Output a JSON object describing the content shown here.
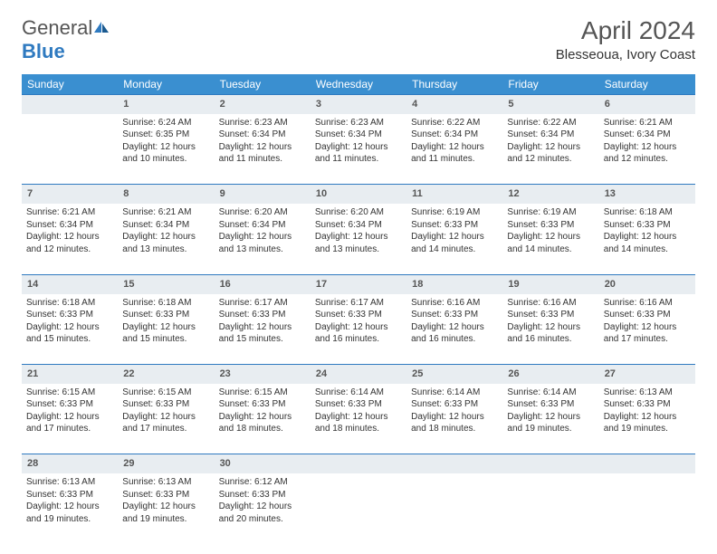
{
  "brand": {
    "part1": "General",
    "part2": "Blue"
  },
  "title": "April 2024",
  "location": "Blesseoua, Ivory Coast",
  "colors": {
    "header_bg": "#3a8fd0",
    "header_text": "#ffffff",
    "daynum_bg": "#e8edf1",
    "row_border": "#2f7ac0",
    "brand_blue": "#2f7ac0",
    "text": "#333333",
    "title_text": "#555555",
    "background": "#ffffff"
  },
  "day_headers": [
    "Sunday",
    "Monday",
    "Tuesday",
    "Wednesday",
    "Thursday",
    "Friday",
    "Saturday"
  ],
  "weeks": [
    {
      "nums": [
        "",
        "1",
        "2",
        "3",
        "4",
        "5",
        "6"
      ],
      "cells": [
        null,
        {
          "sunrise": "6:24 AM",
          "sunset": "6:35 PM",
          "daylight": "12 hours and 10 minutes."
        },
        {
          "sunrise": "6:23 AM",
          "sunset": "6:34 PM",
          "daylight": "12 hours and 11 minutes."
        },
        {
          "sunrise": "6:23 AM",
          "sunset": "6:34 PM",
          "daylight": "12 hours and 11 minutes."
        },
        {
          "sunrise": "6:22 AM",
          "sunset": "6:34 PM",
          "daylight": "12 hours and 11 minutes."
        },
        {
          "sunrise": "6:22 AM",
          "sunset": "6:34 PM",
          "daylight": "12 hours and 12 minutes."
        },
        {
          "sunrise": "6:21 AM",
          "sunset": "6:34 PM",
          "daylight": "12 hours and 12 minutes."
        }
      ]
    },
    {
      "nums": [
        "7",
        "8",
        "9",
        "10",
        "11",
        "12",
        "13"
      ],
      "cells": [
        {
          "sunrise": "6:21 AM",
          "sunset": "6:34 PM",
          "daylight": "12 hours and 12 minutes."
        },
        {
          "sunrise": "6:21 AM",
          "sunset": "6:34 PM",
          "daylight": "12 hours and 13 minutes."
        },
        {
          "sunrise": "6:20 AM",
          "sunset": "6:34 PM",
          "daylight": "12 hours and 13 minutes."
        },
        {
          "sunrise": "6:20 AM",
          "sunset": "6:34 PM",
          "daylight": "12 hours and 13 minutes."
        },
        {
          "sunrise": "6:19 AM",
          "sunset": "6:33 PM",
          "daylight": "12 hours and 14 minutes."
        },
        {
          "sunrise": "6:19 AM",
          "sunset": "6:33 PM",
          "daylight": "12 hours and 14 minutes."
        },
        {
          "sunrise": "6:18 AM",
          "sunset": "6:33 PM",
          "daylight": "12 hours and 14 minutes."
        }
      ]
    },
    {
      "nums": [
        "14",
        "15",
        "16",
        "17",
        "18",
        "19",
        "20"
      ],
      "cells": [
        {
          "sunrise": "6:18 AM",
          "sunset": "6:33 PM",
          "daylight": "12 hours and 15 minutes."
        },
        {
          "sunrise": "6:18 AM",
          "sunset": "6:33 PM",
          "daylight": "12 hours and 15 minutes."
        },
        {
          "sunrise": "6:17 AM",
          "sunset": "6:33 PM",
          "daylight": "12 hours and 15 minutes."
        },
        {
          "sunrise": "6:17 AM",
          "sunset": "6:33 PM",
          "daylight": "12 hours and 16 minutes."
        },
        {
          "sunrise": "6:16 AM",
          "sunset": "6:33 PM",
          "daylight": "12 hours and 16 minutes."
        },
        {
          "sunrise": "6:16 AM",
          "sunset": "6:33 PM",
          "daylight": "12 hours and 16 minutes."
        },
        {
          "sunrise": "6:16 AM",
          "sunset": "6:33 PM",
          "daylight": "12 hours and 17 minutes."
        }
      ]
    },
    {
      "nums": [
        "21",
        "22",
        "23",
        "24",
        "25",
        "26",
        "27"
      ],
      "cells": [
        {
          "sunrise": "6:15 AM",
          "sunset": "6:33 PM",
          "daylight": "12 hours and 17 minutes."
        },
        {
          "sunrise": "6:15 AM",
          "sunset": "6:33 PM",
          "daylight": "12 hours and 17 minutes."
        },
        {
          "sunrise": "6:15 AM",
          "sunset": "6:33 PM",
          "daylight": "12 hours and 18 minutes."
        },
        {
          "sunrise": "6:14 AM",
          "sunset": "6:33 PM",
          "daylight": "12 hours and 18 minutes."
        },
        {
          "sunrise": "6:14 AM",
          "sunset": "6:33 PM",
          "daylight": "12 hours and 18 minutes."
        },
        {
          "sunrise": "6:14 AM",
          "sunset": "6:33 PM",
          "daylight": "12 hours and 19 minutes."
        },
        {
          "sunrise": "6:13 AM",
          "sunset": "6:33 PM",
          "daylight": "12 hours and 19 minutes."
        }
      ]
    },
    {
      "nums": [
        "28",
        "29",
        "30",
        "",
        "",
        "",
        ""
      ],
      "cells": [
        {
          "sunrise": "6:13 AM",
          "sunset": "6:33 PM",
          "daylight": "12 hours and 19 minutes."
        },
        {
          "sunrise": "6:13 AM",
          "sunset": "6:33 PM",
          "daylight": "12 hours and 19 minutes."
        },
        {
          "sunrise": "6:12 AM",
          "sunset": "6:33 PM",
          "daylight": "12 hours and 20 minutes."
        },
        null,
        null,
        null,
        null
      ]
    }
  ],
  "labels": {
    "sunrise": "Sunrise:",
    "sunset": "Sunset:",
    "daylight": "Daylight:"
  }
}
